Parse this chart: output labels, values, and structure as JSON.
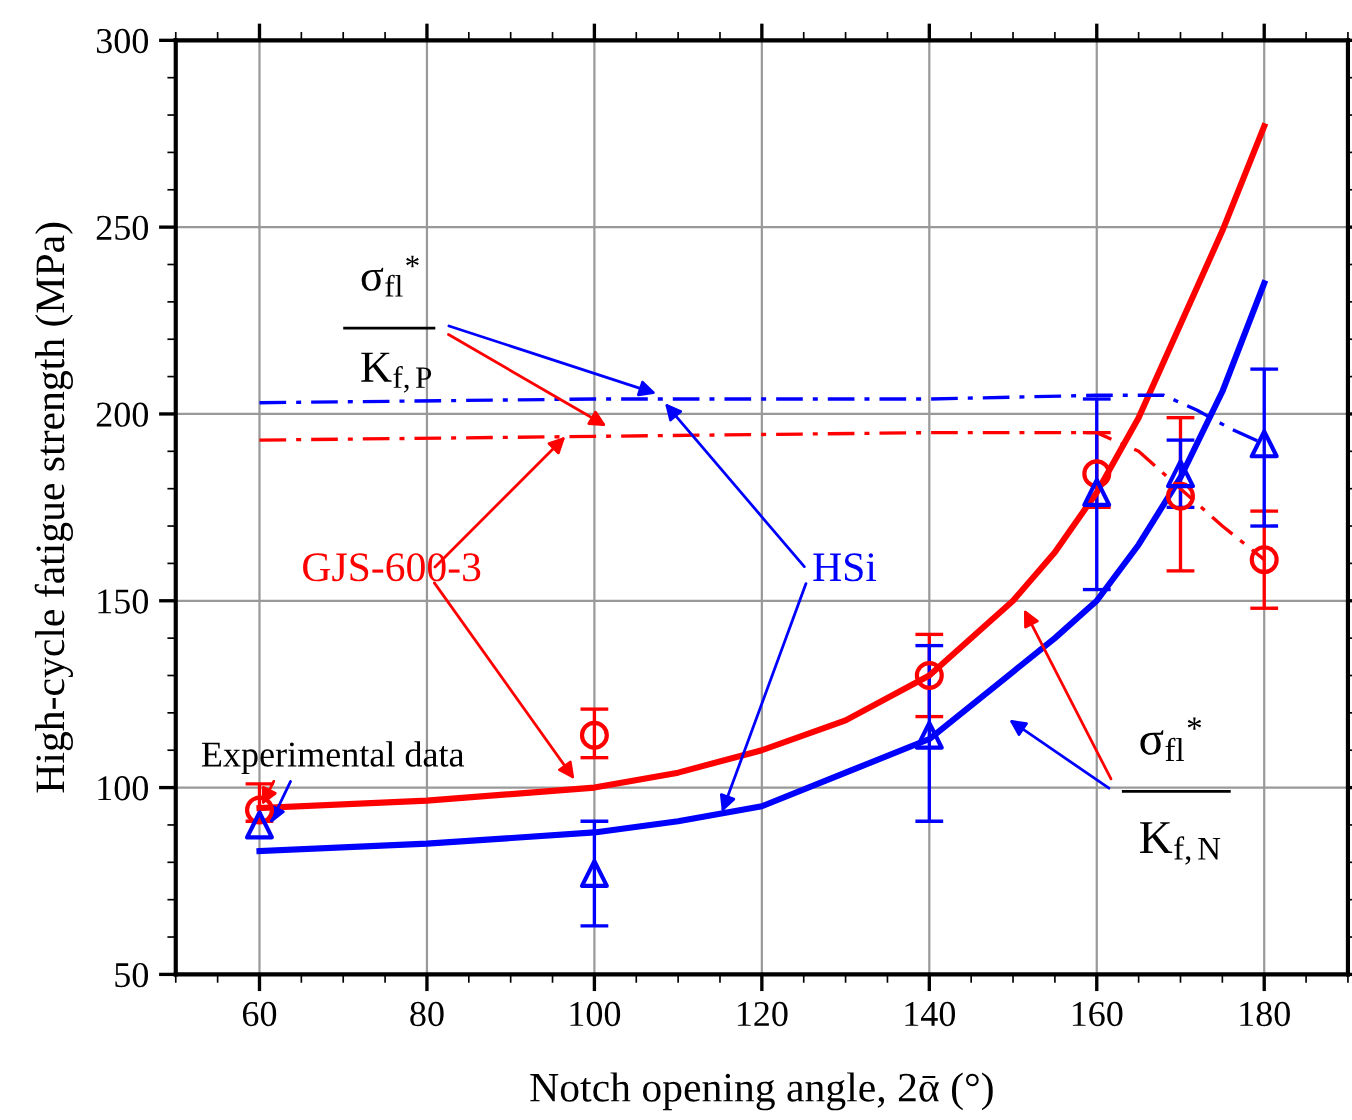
{
  "chart_data": {
    "type": "line",
    "xlabel": "Notch opening angle, 2ᾱ (°)",
    "ylabel": "High-cycle fatigue strength (MPa)",
    "xlim": [
      50,
      190
    ],
    "xticks": [
      60,
      80,
      100,
      120,
      140,
      160,
      180
    ],
    "ylim": [
      50,
      300
    ],
    "yticks": [
      50,
      100,
      150,
      200,
      250,
      300
    ],
    "grid": true,
    "legend": false,
    "series": [
      {
        "type": "scatter",
        "color": "#ff0000",
        "marker": "circle",
        "x": [
          60,
          100,
          140,
          160,
          170,
          180
        ],
        "values": [
          94,
          114,
          130,
          184,
          178,
          161
        ],
        "errors": [
          [
            91,
            101
          ],
          [
            108,
            121
          ],
          [
            119,
            141
          ],
          [
            175,
            195
          ],
          [
            158,
            199
          ],
          [
            148,
            174
          ]
        ]
      },
      {
        "type": "scatter",
        "color": "#0000ff",
        "marker": "triangle",
        "x": [
          60,
          100,
          140,
          160,
          170,
          180
        ],
        "values": [
          90,
          77,
          114,
          179,
          184,
          192
        ],
        "errors": [
          null,
          [
            63,
            91
          ],
          [
            91,
            138
          ],
          [
            153,
            204
          ],
          [
            175,
            193
          ],
          [
            170,
            212
          ]
        ]
      },
      {
        "color": "#ff0000",
        "line_style": "solid",
        "x": [
          60,
          80,
          100,
          110,
          120,
          130,
          140,
          150,
          155,
          160,
          165,
          170,
          175,
          180
        ],
        "values": [
          94.5,
          96.5,
          100,
          104,
          110,
          118,
          130,
          150,
          163,
          179,
          199,
          224,
          249,
          277
        ]
      },
      {
        "color": "#0000ff",
        "line_style": "solid",
        "x": [
          60,
          80,
          100,
          110,
          120,
          130,
          140,
          150,
          155,
          160,
          165,
          170,
          175,
          180
        ],
        "values": [
          83,
          85,
          88,
          91,
          95,
          104,
          113,
          131,
          140,
          150,
          165,
          183,
          206,
          235
        ]
      },
      {
        "color": "#ff0000",
        "line_style": "dashdot",
        "x": [
          60,
          100,
          140,
          160,
          165,
          170,
          175,
          180
        ],
        "values": [
          193,
          194,
          195,
          195,
          190,
          180,
          170,
          161
        ]
      },
      {
        "color": "#0000ff",
        "line_style": "dashdot",
        "x": [
          60,
          100,
          140,
          160,
          168,
          172,
          176,
          180
        ],
        "values": [
          203,
          204,
          204,
          205,
          205,
          201,
          196,
          192
        ]
      }
    ],
    "annotations": [
      "σ$_{fl}$$^{*}$",
      "K$_{f,P}$",
      {
        "text": "GJS-600-3",
        "x": 97,
        "y": 195
      },
      {
        "text": "HSi",
        "x": 108,
        "y": 204
      },
      {
        "text": "Experimental data",
        "x": 60,
        "y": 94
      },
      "σ$_{fl}$$^{*}$",
      "K$_{f,N}$"
    ]
  }
}
